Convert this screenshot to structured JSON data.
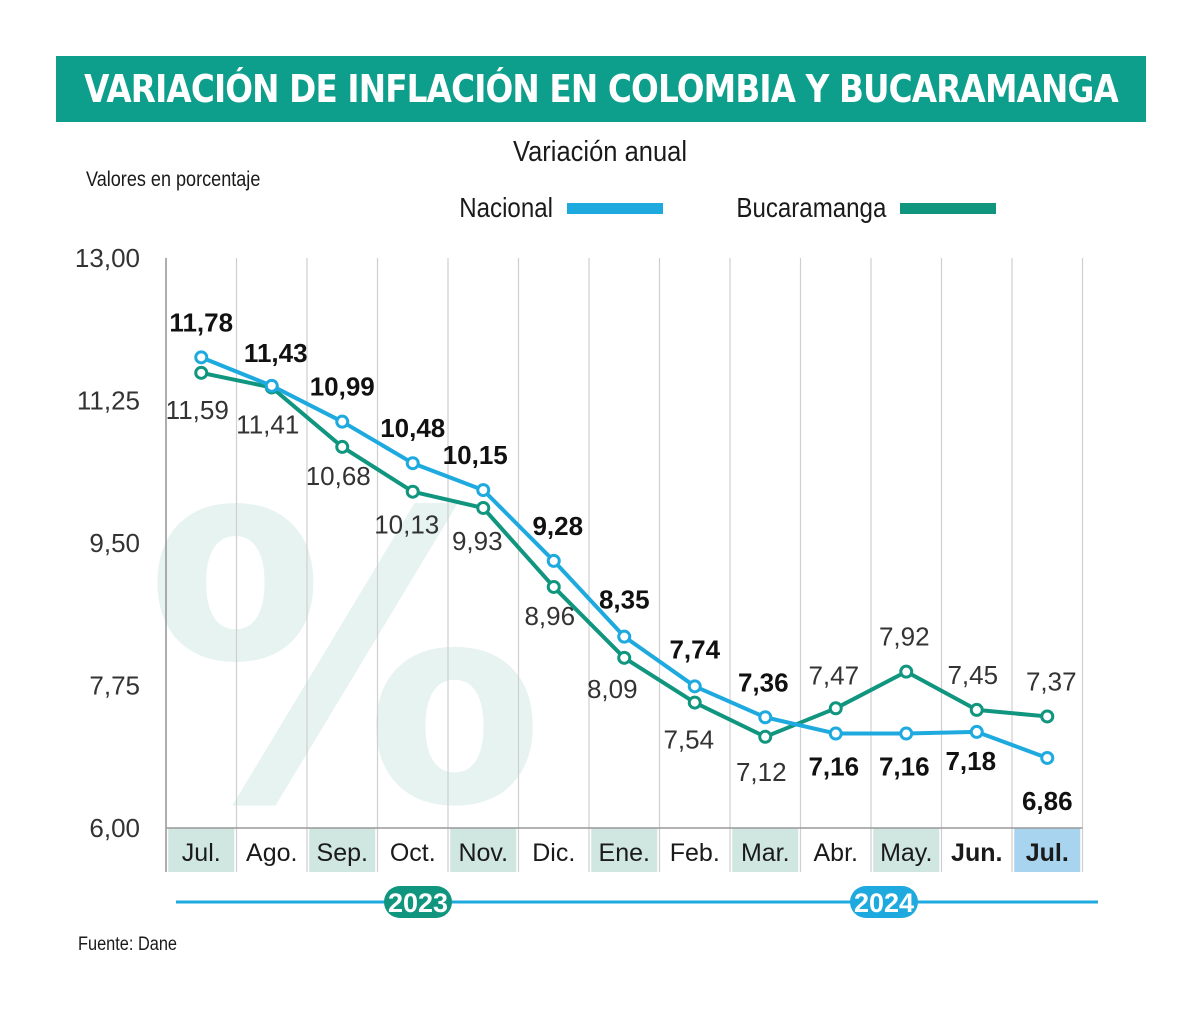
{
  "title": "VARIACIÓN DE INFLACIÓN EN COLOMBIA Y BUCARAMANGA",
  "subtitle": "Variación anual",
  "ylabel": "Valores en porcentaje",
  "source": "Fuente: Dane",
  "legend": {
    "nacional": "Nacional",
    "bucaramanga": "Bucaramanga"
  },
  "colors": {
    "banner": "#0e9f8c",
    "nacional": "#1eaadf",
    "bucaramanga": "#10957f",
    "month_band": "#cfe6e1",
    "month_highlight": "#a8d4ef"
  },
  "watermark": "%",
  "chart_data": {
    "type": "line",
    "categories": [
      "Jul.",
      "Ago.",
      "Sep.",
      "Oct.",
      "Nov.",
      "Dic.",
      "Ene.",
      "Feb.",
      "Mar.",
      "Abr.",
      "May.",
      "Jun.",
      "Jul."
    ],
    "years": [
      {
        "label": "2023"
      },
      {
        "label": "2024"
      }
    ],
    "yticks": [
      "13,00",
      "11,25",
      "9,50",
      "7,75",
      "6,00"
    ],
    "ylim": [
      6,
      13
    ],
    "series": [
      {
        "name": "Nacional",
        "values": [
          11.78,
          11.43,
          10.99,
          10.48,
          10.15,
          9.28,
          8.35,
          7.74,
          7.36,
          7.16,
          7.16,
          7.18,
          6.86
        ],
        "labels": [
          "11,78",
          "11,43",
          "10,99",
          "10,48",
          "10,15",
          "9,28",
          "8,35",
          "7,74",
          "7,36",
          "7,16",
          "7,16",
          "7,18",
          "6,86"
        ]
      },
      {
        "name": "Bucaramanga",
        "values": [
          11.59,
          11.41,
          10.68,
          10.13,
          9.93,
          8.96,
          8.09,
          7.54,
          7.12,
          7.47,
          7.92,
          7.45,
          7.37
        ],
        "labels": [
          "11,59",
          "11,41",
          "10,68",
          "10,13",
          "9,93",
          "8,96",
          "8,09",
          "7,54",
          "7,12",
          "7,47",
          "7,92",
          "7,45",
          "7,37"
        ]
      }
    ]
  }
}
